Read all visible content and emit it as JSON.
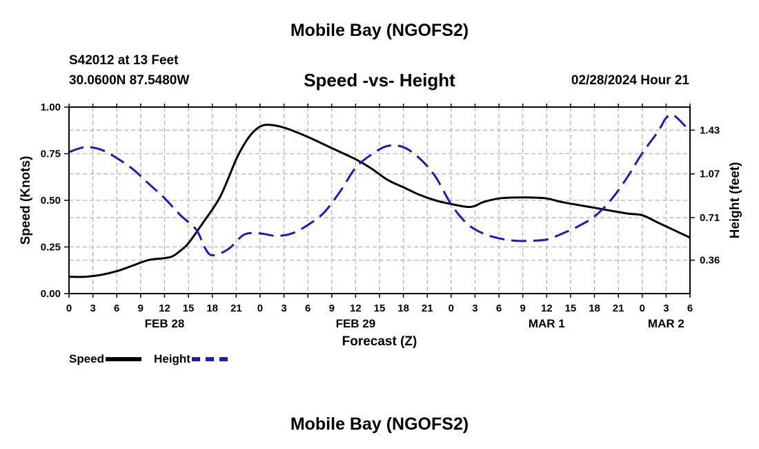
{
  "title_top": "Mobile Bay (NGOFS2)",
  "title_bottom": "Mobile Bay (NGOFS2)",
  "station": "S42012 at 13 Feet",
  "coords": "30.0600N  87.5480W",
  "subtitle": "Speed -vs- Height",
  "datetime": "02/28/2024 Hour 21",
  "legend": {
    "speed_label": "Speed",
    "height_label": "Height"
  },
  "colors": {
    "speed": "#000000",
    "height": "#1a1acc",
    "grid": "#b4b4b4"
  },
  "chart_data": {
    "type": "line",
    "title": "Speed -vs- Height",
    "xlabel": "Forecast (Z)",
    "ylabel_left": "Speed (Knots)",
    "ylabel_right": "Height (feet)",
    "x_unit": "hours from 2024-02-28 00Z",
    "xlim": [
      0,
      78
    ],
    "ylim_left": [
      0,
      1
    ],
    "ylim_right": [
      0.085,
      1.62
    ],
    "x_ticks": [
      0,
      3,
      6,
      9,
      12,
      15,
      18,
      21,
      24,
      27,
      30,
      33,
      36,
      39,
      42,
      45,
      48,
      51,
      54,
      57,
      60,
      63,
      66,
      69,
      72,
      75,
      78
    ],
    "x_tick_labels": [
      "0",
      "3",
      "6",
      "9",
      "12",
      "15",
      "18",
      "21",
      "0",
      "3",
      "6",
      "9",
      "12",
      "15",
      "18",
      "21",
      "0",
      "3",
      "6",
      "9",
      "12",
      "15",
      "18",
      "21",
      "0",
      "3",
      "6"
    ],
    "date_labels": [
      {
        "label": "FEB 28",
        "x": 12
      },
      {
        "label": "FEB 29",
        "x": 36
      },
      {
        "label": "MAR 1",
        "x": 60
      },
      {
        "label": "MAR 2",
        "x": 75
      }
    ],
    "y_ticks_left": [
      0,
      0.25,
      0.5,
      0.75,
      1.0
    ],
    "y_tick_labels_left": [
      "0.00",
      "0.25",
      "0.50",
      "0.75",
      "1.00"
    ],
    "y_ticks_right": [
      0.36,
      0.71,
      1.07,
      1.43
    ],
    "y_tick_labels_right": [
      "0.36",
      "0.71",
      "1.07",
      "1.43"
    ],
    "grid": true,
    "legend_position": "bottom-left",
    "series": [
      {
        "name": "Speed",
        "axis": "left",
        "style": "solid",
        "x": [
          0,
          2,
          4,
          6,
          8,
          10,
          12,
          13,
          14,
          15,
          17,
          19,
          21,
          22,
          23,
          24,
          25,
          27,
          30,
          33,
          36,
          38,
          40,
          42,
          44,
          46,
          48,
          50,
          51,
          52,
          54,
          56,
          58,
          60,
          62,
          66,
          70,
          72,
          74,
          76,
          78
        ],
        "y": [
          0.09,
          0.09,
          0.1,
          0.12,
          0.15,
          0.18,
          0.19,
          0.2,
          0.23,
          0.27,
          0.39,
          0.52,
          0.72,
          0.8,
          0.86,
          0.895,
          0.905,
          0.89,
          0.84,
          0.78,
          0.72,
          0.67,
          0.61,
          0.57,
          0.53,
          0.5,
          0.48,
          0.465,
          0.47,
          0.49,
          0.51,
          0.515,
          0.515,
          0.51,
          0.49,
          0.46,
          0.43,
          0.42,
          0.38,
          0.34,
          0.3
        ]
      },
      {
        "name": "Height",
        "axis": "right",
        "style": "dashed",
        "x": [
          0,
          2,
          4,
          6,
          8,
          10,
          12,
          14,
          16,
          17,
          18,
          20,
          22,
          24,
          26,
          28,
          30,
          32,
          34,
          36,
          38,
          40,
          42,
          44,
          46,
          48,
          50,
          52,
          54,
          56,
          58,
          60,
          62,
          64,
          66,
          68,
          70,
          72,
          74,
          75,
          76,
          78
        ],
        "y": [
          1.25,
          1.29,
          1.27,
          1.2,
          1.11,
          0.99,
          0.87,
          0.73,
          0.61,
          0.47,
          0.4,
          0.45,
          0.57,
          0.58,
          0.56,
          0.58,
          0.65,
          0.75,
          0.92,
          1.12,
          1.23,
          1.3,
          1.29,
          1.2,
          1.05,
          0.82,
          0.66,
          0.58,
          0.54,
          0.52,
          0.52,
          0.53,
          0.58,
          0.64,
          0.72,
          0.85,
          1.03,
          1.24,
          1.42,
          1.53,
          1.55,
          1.42
        ]
      }
    ]
  }
}
